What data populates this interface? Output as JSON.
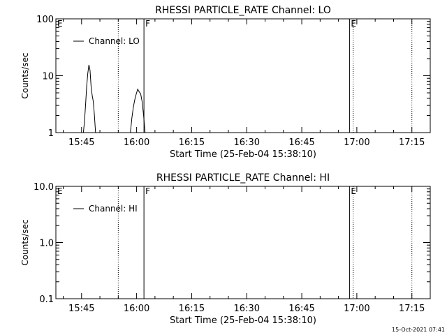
{
  "chart_data": [
    {
      "type": "line",
      "title": "RHESSI PARTICLE_RATE Channel: LO",
      "xlabel": "Start Time (25-Feb-04 15:38:10)",
      "ylabel": "Counts/sec",
      "y_scale": "log",
      "ylim": [
        1,
        100
      ],
      "y_ticks": [
        1,
        10,
        100
      ],
      "y_tick_labels": [
        "1",
        "10",
        "100"
      ],
      "xlim": [
        "15:38",
        "17:20"
      ],
      "x_ticks": [
        "15:45",
        "16:00",
        "16:15",
        "16:30",
        "16:45",
        "17:00",
        "17:15"
      ],
      "legend": {
        "label": "Channel: LO",
        "placement": "top-left"
      },
      "markers": [
        {
          "time": "15:38",
          "label": "E",
          "style": "solid"
        },
        {
          "time": "15:55",
          "label": "",
          "style": "dotted"
        },
        {
          "time": "16:02",
          "label": "F",
          "style": "solid"
        },
        {
          "time": "16:58",
          "label": "E",
          "style": "solid"
        },
        {
          "time": "16:59",
          "label": "",
          "style": "dotted"
        },
        {
          "time": "17:15",
          "label": "",
          "style": "dotted"
        }
      ],
      "series": [
        {
          "name": "Channel: LO",
          "segments": [
            [
              [
                "15:45.5",
                1.0
              ],
              [
                "15:45.8",
                1.6
              ],
              [
                "15:46.1",
                3.2
              ],
              [
                "15:46.4",
                6.5
              ],
              [
                "15:46.7",
                11.0
              ],
              [
                "15:47.0",
                15.5
              ],
              [
                "15:47.3",
                12.5
              ],
              [
                "15:47.6",
                6.5
              ],
              [
                "15:47.9",
                4.5
              ],
              [
                "15:48.2",
                3.5
              ],
              [
                "15:48.5",
                2.0
              ],
              [
                "15:48.8",
                1.0
              ]
            ],
            [
              [
                "15:58.3",
                1.0
              ],
              [
                "15:58.7",
                1.8
              ],
              [
                "15:59.1",
                2.8
              ],
              [
                "15:59.5",
                3.8
              ],
              [
                "15:59.9",
                4.8
              ],
              [
                "16:00.3",
                5.8
              ],
              [
                "16:00.7",
                5.2
              ],
              [
                "16:01.1",
                4.8
              ],
              [
                "16:01.5",
                3.5
              ],
              [
                "16:01.9",
                2.0
              ],
              [
                "16:02.3",
                1.0
              ]
            ]
          ]
        }
      ]
    },
    {
      "type": "line",
      "title": "RHESSI PARTICLE_RATE Channel: HI",
      "xlabel": "Start Time (25-Feb-04 15:38:10)",
      "ylabel": "Counts/sec",
      "y_scale": "log",
      "ylim": [
        0.1,
        10
      ],
      "y_ticks": [
        0.1,
        1,
        10
      ],
      "y_tick_labels": [
        "0.1",
        "1.0",
        "10.0"
      ],
      "xlim": [
        "15:38",
        "17:20"
      ],
      "x_ticks": [
        "15:45",
        "16:00",
        "16:15",
        "16:30",
        "16:45",
        "17:00",
        "17:15"
      ],
      "legend": {
        "label": "Channel: HI",
        "placement": "top-left"
      },
      "markers": [
        {
          "time": "15:38",
          "label": "E",
          "style": "solid"
        },
        {
          "time": "15:55",
          "label": "",
          "style": "dotted"
        },
        {
          "time": "16:02",
          "label": "F",
          "style": "solid"
        },
        {
          "time": "16:58",
          "label": "E",
          "style": "solid"
        },
        {
          "time": "16:59",
          "label": "",
          "style": "dotted"
        },
        {
          "time": "17:15",
          "label": "",
          "style": "dotted"
        }
      ],
      "series": [
        {
          "name": "Channel: HI",
          "segments": []
        }
      ]
    }
  ],
  "footer": {
    "timestamp": "15-Oct-2021 07:41"
  }
}
